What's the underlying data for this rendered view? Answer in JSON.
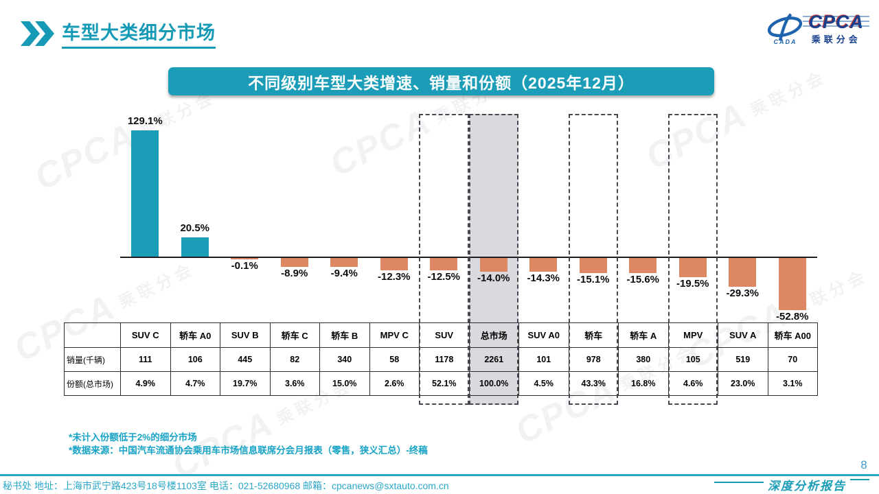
{
  "page": {
    "title": "车型大类细分市场",
    "page_number": "8",
    "report_brand": "深度分析报告"
  },
  "logo": {
    "name": "CPCA",
    "sub": "乘联分会",
    "cada": "CADA"
  },
  "banner": {
    "title": "不同级别车型大类增速、销量和份额（2025年12月）"
  },
  "chart_data": {
    "type": "bar",
    "title": "不同级别车型大类增速、销量和份额（2025年12月）",
    "categories": [
      "SUV C",
      "轿车 A0",
      "SUV B",
      "轿车 C",
      "轿车 B",
      "MPV C",
      "SUV",
      "总市场",
      "SUV A0",
      "轿车",
      "轿车 A",
      "MPV",
      "SUV A",
      "轿车 A00"
    ],
    "series": [
      {
        "name": "增速",
        "values": [
          129.1,
          20.5,
          -0.1,
          -8.9,
          -9.4,
          -12.3,
          -12.5,
          -14.0,
          -14.3,
          -15.1,
          -15.6,
          -19.5,
          -29.3,
          -52.8
        ]
      }
    ],
    "unit": "%",
    "value_labels": [
      "129.1%",
      "20.5%",
      "-0.1%",
      "-8.9%",
      "-9.4%",
      "-12.3%",
      "-12.5%",
      "-14.0%",
      "-14.3%",
      "-15.1%",
      "-15.6%",
      "-19.5%",
      "-29.3%",
      "-52.8%"
    ],
    "highlighted_columns": [
      "SUV",
      "总市场",
      "轿车",
      "MPV"
    ],
    "shaded_column": "总市场",
    "positive_color": "#1b9db8",
    "negative_color": "#dd8763",
    "shade_color": "#d9d9de",
    "axis": "zero-baseline, no y-axis shown",
    "ylim": [
      -60,
      140
    ],
    "table": {
      "row_labels": [
        "销量(千辆)",
        "份额(总市场)"
      ],
      "sales_thousands": [
        111,
        106,
        445,
        82,
        340,
        58,
        1178,
        2261,
        101,
        978,
        380,
        105,
        519,
        70
      ],
      "share_of_total": [
        "4.9%",
        "4.7%",
        "19.7%",
        "3.6%",
        "15.0%",
        "2.6%",
        "52.1%",
        "100.0%",
        "4.5%",
        "43.3%",
        "16.8%",
        "4.6%",
        "23.0%",
        "3.1%"
      ]
    }
  },
  "notes": {
    "line1": "*未计入份额低于2%的细分市场",
    "line2": "*数据来源：中国汽车流通协会乘用车市场信息联席分会月报表（零售，狭义汇总）-终稿"
  },
  "footer": {
    "contact": "秘书处  地址：上海市武宁路423号18号楼1103室 电话：021-52680968  邮箱：cpcanews@sxtauto.com.cn"
  },
  "watermark": {
    "big": "CPCA",
    "small": "乘联分会"
  }
}
